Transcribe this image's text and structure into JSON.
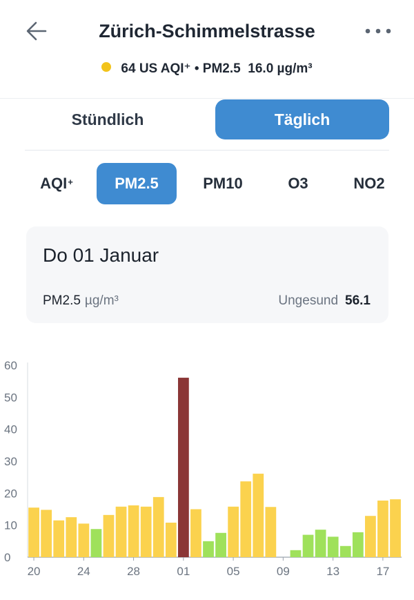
{
  "header": {
    "title": "Zürich-Schimmelstrasse",
    "aqi_dot_color": "#f2c31b",
    "summary_value": "64",
    "summary_label": "US AQI⁺ • PM2.5",
    "summary_concentration": "16.0 µg/m³",
    "back_icon": "arrow-left-icon",
    "more_icon": "more-horizontal-icon"
  },
  "segment": {
    "hourly_label": "Stündlich",
    "daily_label": "Täglich",
    "selected": "daily"
  },
  "pollutants": {
    "items": [
      {
        "label": "AQI",
        "sup": "+"
      },
      {
        "label": "PM2.5",
        "sup": ""
      },
      {
        "label": "PM10",
        "sup": ""
      },
      {
        "label": "O3",
        "sup": ""
      },
      {
        "label": "NO2",
        "sup": ""
      }
    ],
    "selected_index": 1
  },
  "card": {
    "date": "Do 01 Januar",
    "parameter": "PM2.5",
    "unit": "µg/m³",
    "status": "Ungesund",
    "value": "56.1"
  },
  "chart_data": {
    "type": "bar",
    "ylim": [
      0,
      60
    ],
    "yticks": [
      0,
      10,
      20,
      30,
      40,
      50,
      60
    ],
    "x_labels": {
      "0": "20",
      "4": "24",
      "8": "28",
      "12": "01",
      "16": "05",
      "20": "09",
      "24": "13",
      "28": "17"
    },
    "values": [
      15.5,
      14.8,
      11.5,
      12.5,
      10.5,
      8.8,
      13.2,
      15.8,
      16.2,
      15.8,
      18.8,
      10.8,
      56.1,
      15.0,
      5.0,
      7.6,
      15.8,
      23.7,
      26.1,
      15.7,
      0,
      2.2,
      7.0,
      8.6,
      6.4,
      3.5,
      7.8,
      12.9,
      17.7,
      18.1
    ],
    "colors": [
      "#fbd24e",
      "#fbd24e",
      "#fbd24e",
      "#fbd24e",
      "#fbd24e",
      "#9fe15b",
      "#fbd24e",
      "#fbd24e",
      "#fbd24e",
      "#fbd24e",
      "#fbd24e",
      "#fbd24e",
      "#8b3636",
      "#fbd24e",
      "#9fe15b",
      "#9fe15b",
      "#fbd24e",
      "#fbd24e",
      "#fbd24e",
      "#fbd24e",
      "#fbd24e",
      "#9fe15b",
      "#9fe15b",
      "#9fe15b",
      "#9fe15b",
      "#9fe15b",
      "#9fe15b",
      "#fbd24e",
      "#fbd24e",
      "#fbd24e"
    ],
    "grid": false
  }
}
